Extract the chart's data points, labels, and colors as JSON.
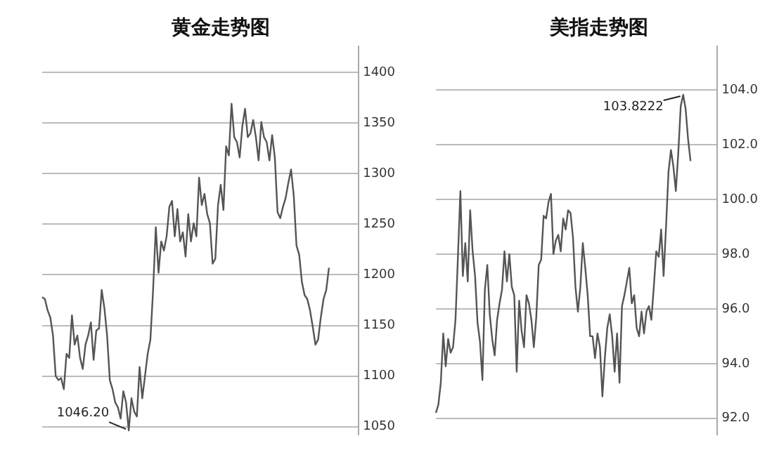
{
  "chart_data": [
    {
      "type": "line",
      "title": "黄金走势图",
      "categories": [
        null,
        null,
        null,
        null,
        null,
        null,
        null,
        null,
        null,
        null,
        null,
        null,
        null,
        null,
        null,
        null,
        null,
        null,
        null,
        null,
        null,
        null,
        null,
        null,
        null,
        null,
        null,
        null,
        null,
        null,
        null,
        null,
        null,
        null,
        null,
        null,
        null,
        null,
        null,
        null,
        null,
        null,
        null,
        null,
        null,
        null,
        null,
        null,
        null,
        null,
        null,
        null,
        null,
        null,
        null,
        null,
        null,
        null,
        null,
        null,
        null,
        null,
        null,
        null,
        null,
        null,
        null,
        null,
        null,
        null,
        null,
        null,
        null,
        null,
        null,
        null,
        null,
        null,
        null,
        null,
        null,
        null,
        null,
        null,
        null,
        null,
        null,
        null,
        null,
        null,
        null,
        null,
        null,
        null,
        null,
        null,
        null,
        null,
        null,
        null,
        null,
        null,
        null,
        null,
        null,
        null,
        null,
        null,
        null,
        null,
        null,
        null,
        null,
        null,
        null,
        null,
        null,
        null
      ],
      "series": [
        {
          "color": "#555555",
          "values": [
            1178,
            1176,
            1165,
            1158,
            1140,
            1100,
            1096,
            1098,
            1087,
            1122,
            1118,
            1160,
            1131,
            1140,
            1118,
            1107,
            1131,
            1140,
            1153,
            1116,
            1145,
            1147,
            1185,
            1167,
            1140,
            1096,
            1087,
            1074,
            1069,
            1058,
            1085,
            1074,
            1046.2,
            1078,
            1065,
            1060,
            1109,
            1078,
            1100,
            1122,
            1136,
            1185,
            1247,
            1202,
            1233,
            1224,
            1238,
            1267,
            1273,
            1238,
            1265,
            1233,
            1242,
            1218,
            1260,
            1233,
            1251,
            1238,
            1296,
            1269,
            1280,
            1260,
            1251,
            1211,
            1216,
            1269,
            1289,
            1264,
            1327,
            1318,
            1369,
            1336,
            1331,
            1316,
            1347,
            1364,
            1336,
            1340,
            1353,
            1336,
            1313,
            1351,
            1336,
            1331,
            1313,
            1338,
            1316,
            1262,
            1256,
            1267,
            1276,
            1291,
            1304,
            1278,
            1229,
            1220,
            1193,
            1180,
            1176,
            1165,
            1149,
            1131,
            1136,
            1158,
            1176,
            1185,
            1207,
            null,
            null,
            null,
            null,
            null,
            null,
            null,
            null,
            null,
            null,
            null
          ],
          "value_labels": [
            null,
            null,
            null,
            null,
            null,
            null,
            null,
            null,
            null,
            null,
            null,
            null,
            null,
            null,
            null,
            null,
            null,
            null,
            null,
            null,
            null,
            null,
            null,
            null,
            null,
            null,
            null,
            null,
            null,
            null,
            null,
            null,
            "1046.20",
            null,
            null,
            null,
            null,
            null,
            null,
            null,
            null,
            null,
            null,
            null,
            null,
            null,
            null,
            null,
            null,
            null,
            null,
            null,
            null,
            null,
            null,
            null,
            null,
            null,
            null,
            null,
            null,
            null,
            null,
            null,
            null,
            null,
            null,
            null,
            null,
            null,
            null,
            null,
            null,
            null,
            null,
            null,
            null,
            null,
            null,
            null,
            null,
            null,
            null,
            null,
            null,
            null,
            null,
            null,
            null,
            null,
            null,
            null,
            null,
            null,
            null,
            null,
            null,
            null,
            null,
            null,
            null,
            null,
            null,
            null,
            null,
            null,
            null,
            null,
            null,
            null,
            null,
            null,
            null,
            null,
            null,
            null,
            null,
            null
          ]
        }
      ],
      "ylim": [
        1042,
        1426
      ],
      "yticks": [
        1050,
        1100,
        1150,
        1200,
        1250,
        1300,
        1350,
        1400
      ],
      "grid": "y",
      "tick_labels": "y",
      "marker": "none",
      "line_style": "solid"
    },
    {
      "type": "line",
      "title": "美指走势图",
      "categories": [
        null,
        null,
        null,
        null,
        null,
        null,
        null,
        null,
        null,
        null,
        null,
        null,
        null,
        null,
        null,
        null,
        null,
        null,
        null,
        null,
        null,
        null,
        null,
        null,
        null,
        null,
        null,
        null,
        null,
        null,
        null,
        null,
        null,
        null,
        null,
        null,
        null,
        null,
        null,
        null,
        null,
        null,
        null,
        null,
        null,
        null,
        null,
        null,
        null,
        null,
        null,
        null,
        null,
        null,
        null,
        null,
        null,
        null,
        null,
        null,
        null,
        null,
        null,
        null,
        null,
        null,
        null,
        null,
        null,
        null,
        null,
        null,
        null,
        null,
        null,
        null,
        null,
        null,
        null,
        null,
        null,
        null,
        null,
        null,
        null,
        null,
        null,
        null,
        null,
        null,
        null,
        null,
        null,
        null,
        null,
        null,
        null,
        null,
        null,
        null,
        null,
        null,
        null,
        null,
        null,
        null,
        null,
        null,
        null,
        null,
        null,
        null,
        null,
        null,
        null,
        null
      ],
      "series": [
        {
          "color": "#555555",
          "values": [
            92.2,
            92.5,
            93.3,
            95.1,
            93.9,
            94.9,
            94.4,
            94.6,
            95.6,
            97.9,
            100.3,
            97.2,
            98.4,
            97.0,
            99.6,
            98.1,
            97.2,
            95.5,
            94.8,
            93.4,
            96.7,
            97.6,
            95.8,
            94.9,
            94.3,
            95.6,
            96.2,
            96.7,
            98.1,
            97.0,
            98.0,
            96.8,
            96.5,
            93.7,
            96.3,
            95.2,
            94.6,
            96.5,
            96.2,
            95.6,
            94.6,
            95.7,
            97.6,
            97.8,
            99.4,
            99.3,
            99.9,
            100.2,
            98.0,
            98.5,
            98.7,
            98.1,
            99.3,
            98.9,
            99.6,
            99.5,
            98.6,
            96.8,
            95.9,
            96.8,
            98.4,
            97.5,
            96.5,
            95.0,
            95.0,
            94.2,
            95.1,
            94.6,
            92.8,
            94.2,
            95.3,
            95.8,
            95.0,
            93.7,
            95.1,
            93.3,
            96.1,
            96.5,
            97.0,
            97.5,
            96.2,
            96.5,
            95.3,
            95.0,
            95.9,
            95.1,
            95.9,
            96.1,
            95.6,
            96.8,
            98.1,
            97.9,
            98.9,
            97.2,
            99.0,
            101.0,
            101.8,
            101.2,
            100.3,
            101.7,
            103.4,
            103.8222,
            103.3,
            102.2,
            101.4,
            null,
            null,
            null,
            null,
            null,
            null,
            null,
            null,
            null,
            null,
            null
          ],
          "value_labels": [
            null,
            null,
            null,
            null,
            null,
            null,
            null,
            null,
            null,
            null,
            null,
            null,
            null,
            null,
            null,
            null,
            null,
            null,
            null,
            null,
            null,
            null,
            null,
            null,
            null,
            null,
            null,
            null,
            null,
            null,
            null,
            null,
            null,
            null,
            null,
            null,
            null,
            null,
            null,
            null,
            null,
            null,
            null,
            null,
            null,
            null,
            null,
            null,
            null,
            null,
            null,
            null,
            null,
            null,
            null,
            null,
            null,
            null,
            null,
            null,
            null,
            null,
            null,
            null,
            null,
            null,
            null,
            null,
            null,
            null,
            null,
            null,
            null,
            null,
            null,
            null,
            null,
            null,
            null,
            null,
            null,
            null,
            null,
            null,
            null,
            null,
            null,
            null,
            null,
            null,
            null,
            null,
            null,
            null,
            null,
            null,
            null,
            null,
            null,
            null,
            null,
            "103.8222",
            null,
            null,
            null,
            null,
            null,
            null,
            null,
            null,
            null,
            null,
            null,
            null,
            null,
            null
          ]
        }
      ],
      "ylim": [
        91.4,
        105.6
      ],
      "yticks": [
        {
          "value": 92,
          "label": "92.0"
        },
        {
          "value": 94,
          "label": "94.0"
        },
        {
          "value": 96,
          "label": "96.0"
        },
        {
          "value": 98,
          "label": "98.0"
        },
        {
          "value": 100,
          "label": "100.0"
        },
        {
          "value": 102,
          "label": "102.0"
        },
        {
          "value": 104,
          "label": "104.0"
        }
      ],
      "grid": "y",
      "tick_labels": "y",
      "marker": "none",
      "line_style": "solid"
    }
  ]
}
